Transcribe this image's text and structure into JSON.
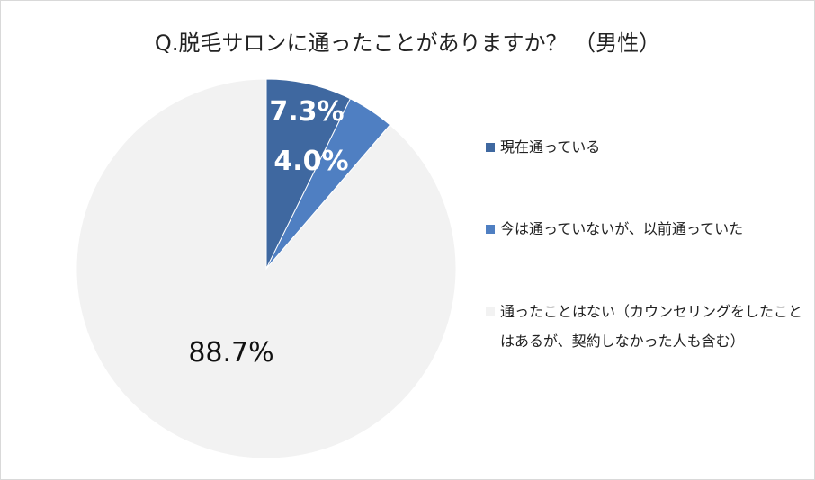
{
  "chart_data": {
    "type": "pie",
    "title": "Q.脱毛サロンに通ったことがありますか？ （男性）",
    "slices": [
      {
        "label": "現在通っている",
        "value": 7.3,
        "value_label": "7.3%",
        "color": "#3f68a0"
      },
      {
        "label": "今は通っていないが、以前通っていた",
        "value": 4.0,
        "value_label": "4.0%",
        "color": "#4f7fc2"
      },
      {
        "label": "通ったことはない（カウンセリングをしたことはあるが、契約しなかった人も含む）",
        "value": 88.7,
        "value_label": "88.7%",
        "color": "#f2f2f2"
      }
    ],
    "legend_position": "right"
  }
}
